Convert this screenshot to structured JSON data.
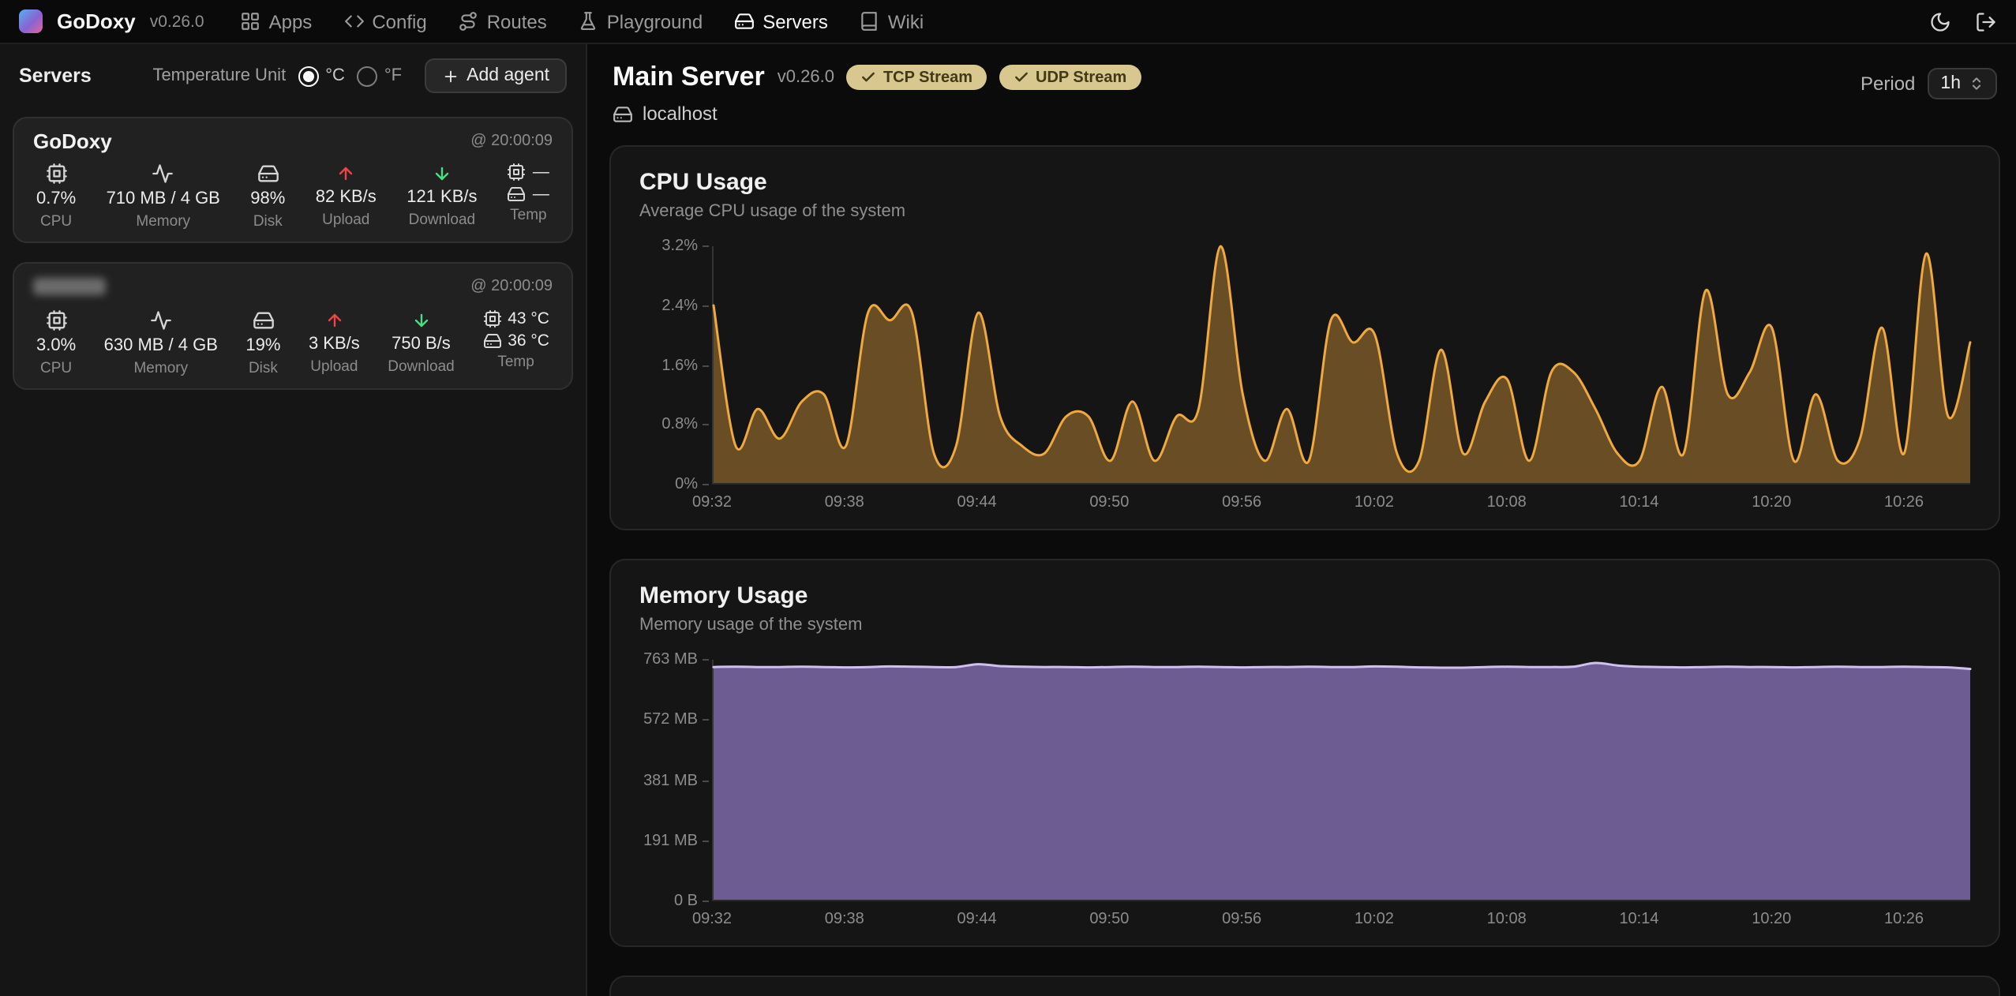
{
  "app": {
    "name": "GoDoxy",
    "version": "v0.26.0"
  },
  "nav": {
    "items": [
      {
        "label": "Apps",
        "icon": "grid",
        "active": false
      },
      {
        "label": "Config",
        "icon": "code",
        "active": false
      },
      {
        "label": "Routes",
        "icon": "route",
        "active": false
      },
      {
        "label": "Playground",
        "icon": "flask",
        "active": false
      },
      {
        "label": "Servers",
        "icon": "hard-drive",
        "active": true
      },
      {
        "label": "Wiki",
        "icon": "book",
        "active": false
      }
    ],
    "actions": [
      {
        "name": "theme-toggle",
        "icon": "moon"
      },
      {
        "name": "logout",
        "icon": "log-out"
      }
    ]
  },
  "sidebar": {
    "title": "Servers",
    "temperature": {
      "label": "Temperature Unit",
      "options": [
        {
          "label": "°C",
          "selected": true
        },
        {
          "label": "°F",
          "selected": false
        }
      ]
    },
    "add_agent_label": "Add agent",
    "stat_labels": {
      "cpu": "CPU",
      "memory": "Memory",
      "disk": "Disk",
      "upload": "Upload",
      "download": "Download",
      "temp": "Temp"
    },
    "servers": [
      {
        "name": "GoDoxy",
        "timestamp": "@ 20:00:09",
        "cpu": "0.7%",
        "memory": "710 MB / 4 GB",
        "disk": "98%",
        "upload": "82 KB/s",
        "download": "121 KB/s",
        "cpu_temp": "—",
        "disk_temp": "—"
      },
      {
        "name": "",
        "name_redacted": true,
        "timestamp": "@ 20:00:09",
        "cpu": "3.0%",
        "memory": "630 MB / 4 GB",
        "disk": "19%",
        "upload": "3 KB/s",
        "download": "750 B/s",
        "cpu_temp": "43 °C",
        "disk_temp": "36 °C"
      }
    ]
  },
  "main": {
    "title": "Main Server",
    "version": "v0.26.0",
    "badges": [
      {
        "label": "TCP Stream",
        "icon": "check"
      },
      {
        "label": "UDP Stream",
        "icon": "check"
      }
    ],
    "host": "localhost",
    "period_label": "Period",
    "period_value": "1h"
  },
  "colors": {
    "cpu_accent": "#efa93f",
    "memory_accent": "#cfc0f0",
    "badge_bg": "#d8c78f",
    "upload_red": "#ef4444",
    "download_green": "#4ade80"
  },
  "chart_data": [
    {
      "type": "area",
      "title": "CPU Usage",
      "subtitle": "Average CPU usage of the system",
      "ylabel_ticks": [
        "3.2%",
        "2.4%",
        "1.6%",
        "0.8%",
        "0%"
      ],
      "ylim": [
        0,
        3.2
      ],
      "unit": "%",
      "x_ticks": [
        "09:32",
        "09:38",
        "09:44",
        "09:50",
        "09:56",
        "10:02",
        "10:08",
        "10:14",
        "10:20",
        "10:26"
      ],
      "x_tick_fraction": 0.10526,
      "grid": false,
      "legend": "none",
      "line_color": "#efa93f",
      "fill_color": "rgba(239,169,63,0.38)",
      "values": [
        2.4,
        0.5,
        1.0,
        0.6,
        1.1,
        1.2,
        0.5,
        2.3,
        2.2,
        2.3,
        0.4,
        0.5,
        2.3,
        0.9,
        0.5,
        0.4,
        0.9,
        0.9,
        0.3,
        1.1,
        0.3,
        0.9,
        1.0,
        3.2,
        1.2,
        0.3,
        1.0,
        0.3,
        2.2,
        1.9,
        2.0,
        0.4,
        0.3,
        1.8,
        0.4,
        1.1,
        1.4,
        0.3,
        1.5,
        1.5,
        1.0,
        0.4,
        0.3,
        1.3,
        0.4,
        2.6,
        1.2,
        1.5,
        2.1,
        0.3,
        1.2,
        0.3,
        0.6,
        2.1,
        0.4,
        3.1,
        0.9,
        1.9
      ]
    },
    {
      "type": "area",
      "title": "Memory Usage",
      "subtitle": "Memory usage of the system",
      "ylabel_ticks": [
        "763 MB",
        "572 MB",
        "381 MB",
        "191 MB",
        "0 B"
      ],
      "ylim": [
        0,
        763
      ],
      "unit": "MB",
      "x_ticks": [
        "09:32",
        "09:38",
        "09:44",
        "09:50",
        "09:56",
        "10:02",
        "10:08",
        "10:14",
        "10:20",
        "10:26"
      ],
      "x_tick_fraction": 0.10526,
      "grid": false,
      "legend": "none",
      "line_color": "#cfc0f0",
      "fill_color": "rgba(118,100,160,0.9)",
      "values": [
        740,
        741,
        740,
        740,
        741,
        740,
        739,
        740,
        742,
        741,
        740,
        740,
        749,
        743,
        741,
        740,
        740,
        739,
        740,
        741,
        740,
        740,
        741,
        740,
        739,
        740,
        740,
        741,
        740,
        740,
        742,
        741,
        739,
        738,
        738,
        740,
        741,
        740,
        740,
        741,
        753,
        745,
        741,
        740,
        739,
        740,
        741,
        740,
        740,
        739,
        740,
        741,
        740,
        740,
        741,
        740,
        739,
        734
      ]
    }
  ]
}
